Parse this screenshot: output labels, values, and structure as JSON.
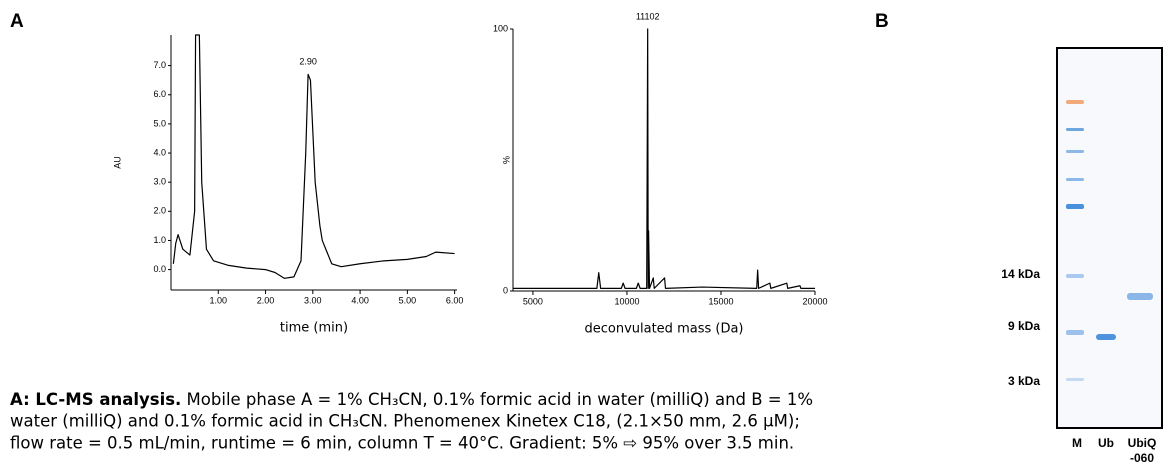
{
  "panels": {
    "a": "A",
    "b": "B"
  },
  "chart_data": [
    {
      "type": "line",
      "ylabel": "AU",
      "xlabel": "time (min)",
      "color": "#000000",
      "x": [
        0.05,
        0.1,
        0.15,
        0.25,
        0.4,
        0.5,
        0.52,
        0.6,
        0.65,
        0.75,
        0.9,
        1.2,
        1.6,
        2.0,
        2.2,
        2.4,
        2.6,
        2.75,
        2.85,
        2.9,
        2.95,
        3.05,
        3.15,
        3.2,
        3.3,
        3.4,
        3.6,
        4.0,
        4.5,
        5.0,
        5.4,
        5.6,
        6.0
      ],
      "values": [
        0.2,
        0.9,
        1.2,
        0.7,
        0.5,
        2.0,
        8.05,
        8.05,
        3.0,
        0.7,
        0.3,
        0.15,
        0.05,
        0.0,
        -0.1,
        -0.3,
        -0.25,
        0.3,
        4.0,
        6.7,
        6.5,
        3.0,
        1.5,
        1.0,
        0.6,
        0.2,
        0.1,
        0.2,
        0.3,
        0.35,
        0.45,
        0.6,
        0.55
      ],
      "xlim": [
        0,
        6.05
      ],
      "ylim": [
        -0.7,
        8.05
      ],
      "xticks": [
        {
          "value": 1,
          "label": "1.00"
        },
        {
          "value": 2,
          "label": "2.00"
        },
        {
          "value": 3,
          "label": "3.00"
        },
        {
          "value": 4,
          "label": "4.00"
        },
        {
          "value": 5,
          "label": "5.00"
        },
        {
          "value": 6,
          "label": "6.00"
        }
      ],
      "yticks": [
        {
          "value": 0,
          "label": "0.0"
        },
        {
          "value": 1,
          "label": "1.0"
        },
        {
          "value": 2,
          "label": "2.0"
        },
        {
          "value": 3,
          "label": "3.0"
        },
        {
          "value": 4,
          "label": "4.0"
        },
        {
          "value": 5,
          "label": "5.0"
        },
        {
          "value": 6,
          "label": "6.0"
        },
        {
          "value": 7,
          "label": "7.0"
        }
      ],
      "annotations": [
        {
          "text": "2.90",
          "x": 2.9,
          "y": 6.7
        }
      ]
    },
    {
      "type": "line",
      "ylabel": "%",
      "xlabel": "deconvulated mass (Da)",
      "color": "#000000",
      "x": [
        3940,
        6000,
        8400,
        8500,
        8600,
        9700,
        9800,
        9900,
        10500,
        10600,
        10700,
        11050,
        11102,
        11130,
        11150,
        11200,
        11400,
        11450,
        12000,
        12050,
        14000,
        16900,
        16950,
        17000,
        17600,
        17650,
        18500,
        18550,
        19200,
        19250,
        20000
      ],
      "values": [
        1,
        1,
        1,
        7,
        1,
        1,
        3,
        1,
        1,
        3,
        1,
        1,
        100,
        1,
        23,
        1,
        5,
        1,
        5,
        1,
        1.5,
        1,
        8,
        1,
        3,
        1,
        3,
        1,
        2,
        1,
        1
      ],
      "xlim": [
        3940,
        20000
      ],
      "ylim": [
        0,
        100
      ],
      "xticks": [
        5000,
        10000,
        15000,
        20000
      ],
      "yticks": [
        0,
        100
      ],
      "annotations": [
        {
          "text": "11102",
          "x": 11102,
          "y": 100
        }
      ]
    }
  ],
  "gel": {
    "markers": [
      "14 kDa",
      "9 kDa",
      "3 kDa"
    ],
    "lanes": [
      "M",
      "Ub",
      "UbiQ",
      "-060"
    ]
  },
  "caption": {
    "label": "A: LC-MS analysis.",
    "lines": [
      " Mobile phase A = 1% CH₃CN, 0.1% formic acid in water (milliQ) and B = 1%",
      "water (milliQ) and 0.1% formic acid in CH₃CN. Phenomenex Kinetex C18, (2.1×50 mm, 2.6 µM);",
      "flow rate = 0.5 mL/min, runtime = 6 min, column T = 40°C. Gradient: 5% ⇨ 95% over 3.5 min."
    ]
  }
}
